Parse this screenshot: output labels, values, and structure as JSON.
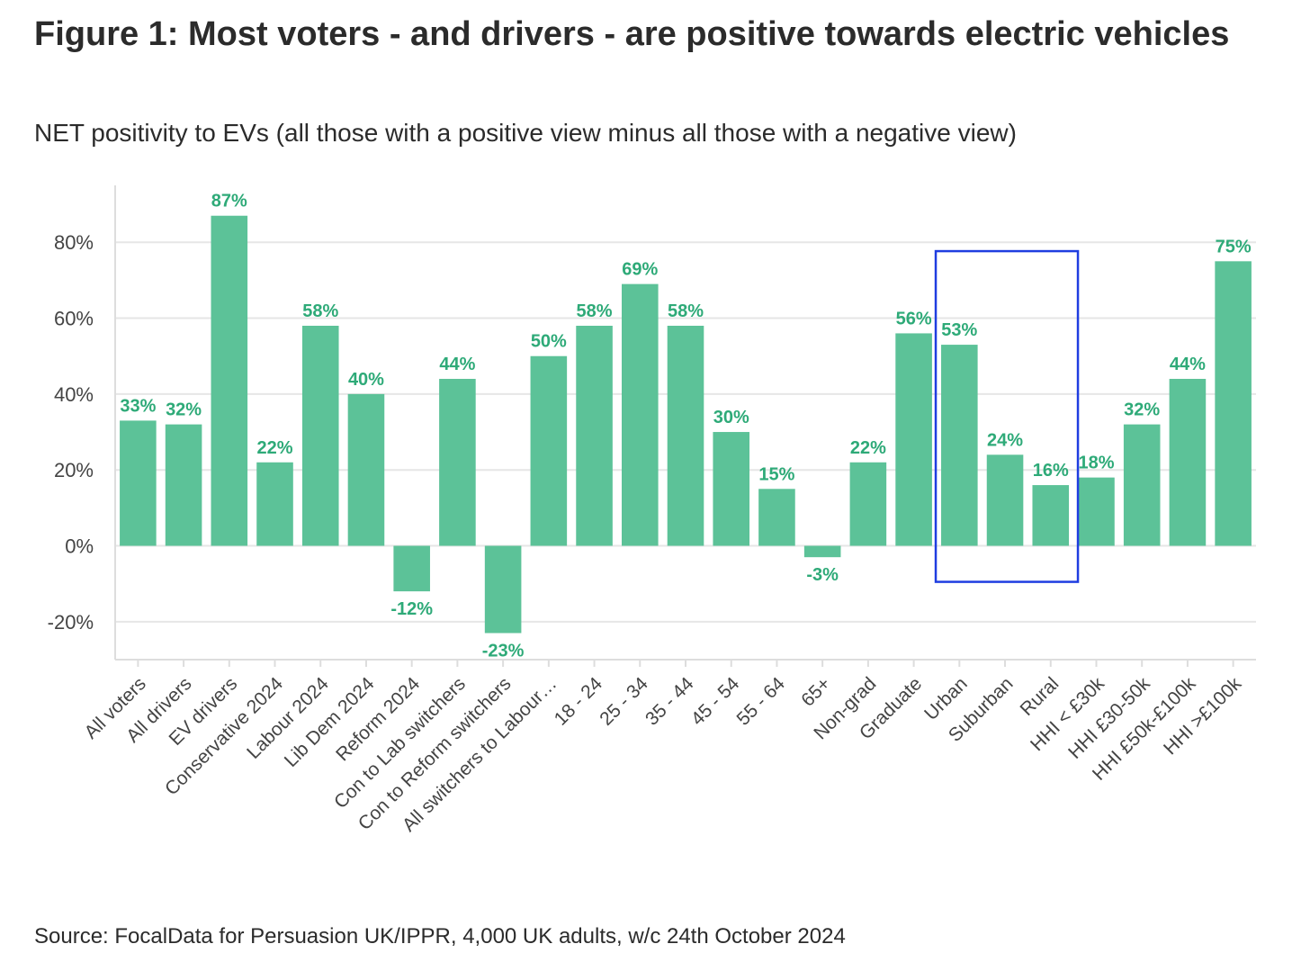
{
  "title": "Figure 1: Most voters - and drivers - are positive towards electric vehicles",
  "subtitle": "NET positivity to EVs (all those with a positive view minus all those with a negative view)",
  "source": "Source: FocalData for Persuasion UK/IPPR, 4,000 UK adults, w/c 24th October 2024",
  "colors": {
    "bar": "#5cc298",
    "label": "#2eaa78",
    "grid": "#e6e6e6",
    "axis": "#dddddd",
    "highlight_box": "#1f3de0"
  },
  "chart_data": {
    "type": "bar",
    "categories": [
      "All voters",
      "All drivers",
      "EV  drivers",
      "Conservative 2024",
      "Labour 2024",
      "Lib Dem 2024",
      "Reform 2024",
      "Con to Lab switchers",
      "Con to Reform switchers",
      "All switchers to Labour…",
      "18 - 24",
      "25 - 34",
      "35 - 44",
      "45 - 54",
      "55 - 64",
      "65+",
      "Non-grad",
      "Graduate",
      "Urban",
      "Suburban",
      "Rural",
      "HHI < £30k",
      "HHI £30-50k",
      "HHI £50k-£100k",
      "HHI >£100k"
    ],
    "values": [
      33,
      32,
      87,
      22,
      58,
      40,
      -12,
      44,
      -23,
      50,
      58,
      69,
      58,
      30,
      15,
      -3,
      22,
      56,
      53,
      24,
      16,
      18,
      32,
      44,
      75
    ],
    "data_labels": [
      "33%",
      "32%",
      "87%",
      "22%",
      "58%",
      "40%",
      "-12%",
      "44%",
      "-23%",
      "50%",
      "58%",
      "69%",
      "58%",
      "30%",
      "15%",
      "-3%",
      "22%",
      "56%",
      "53%",
      "24%",
      "16%",
      "18%",
      "32%",
      "44%",
      "75%"
    ],
    "yticks": [
      -20,
      0,
      20,
      40,
      60,
      80
    ],
    "ytick_labels": [
      "-20%",
      "0%",
      "20%",
      "40%",
      "60%",
      "80%"
    ],
    "ylim": [
      -30,
      95
    ],
    "grid": true,
    "legend": "none",
    "highlight": [
      "Urban",
      "Suburban",
      "Rural"
    ]
  }
}
